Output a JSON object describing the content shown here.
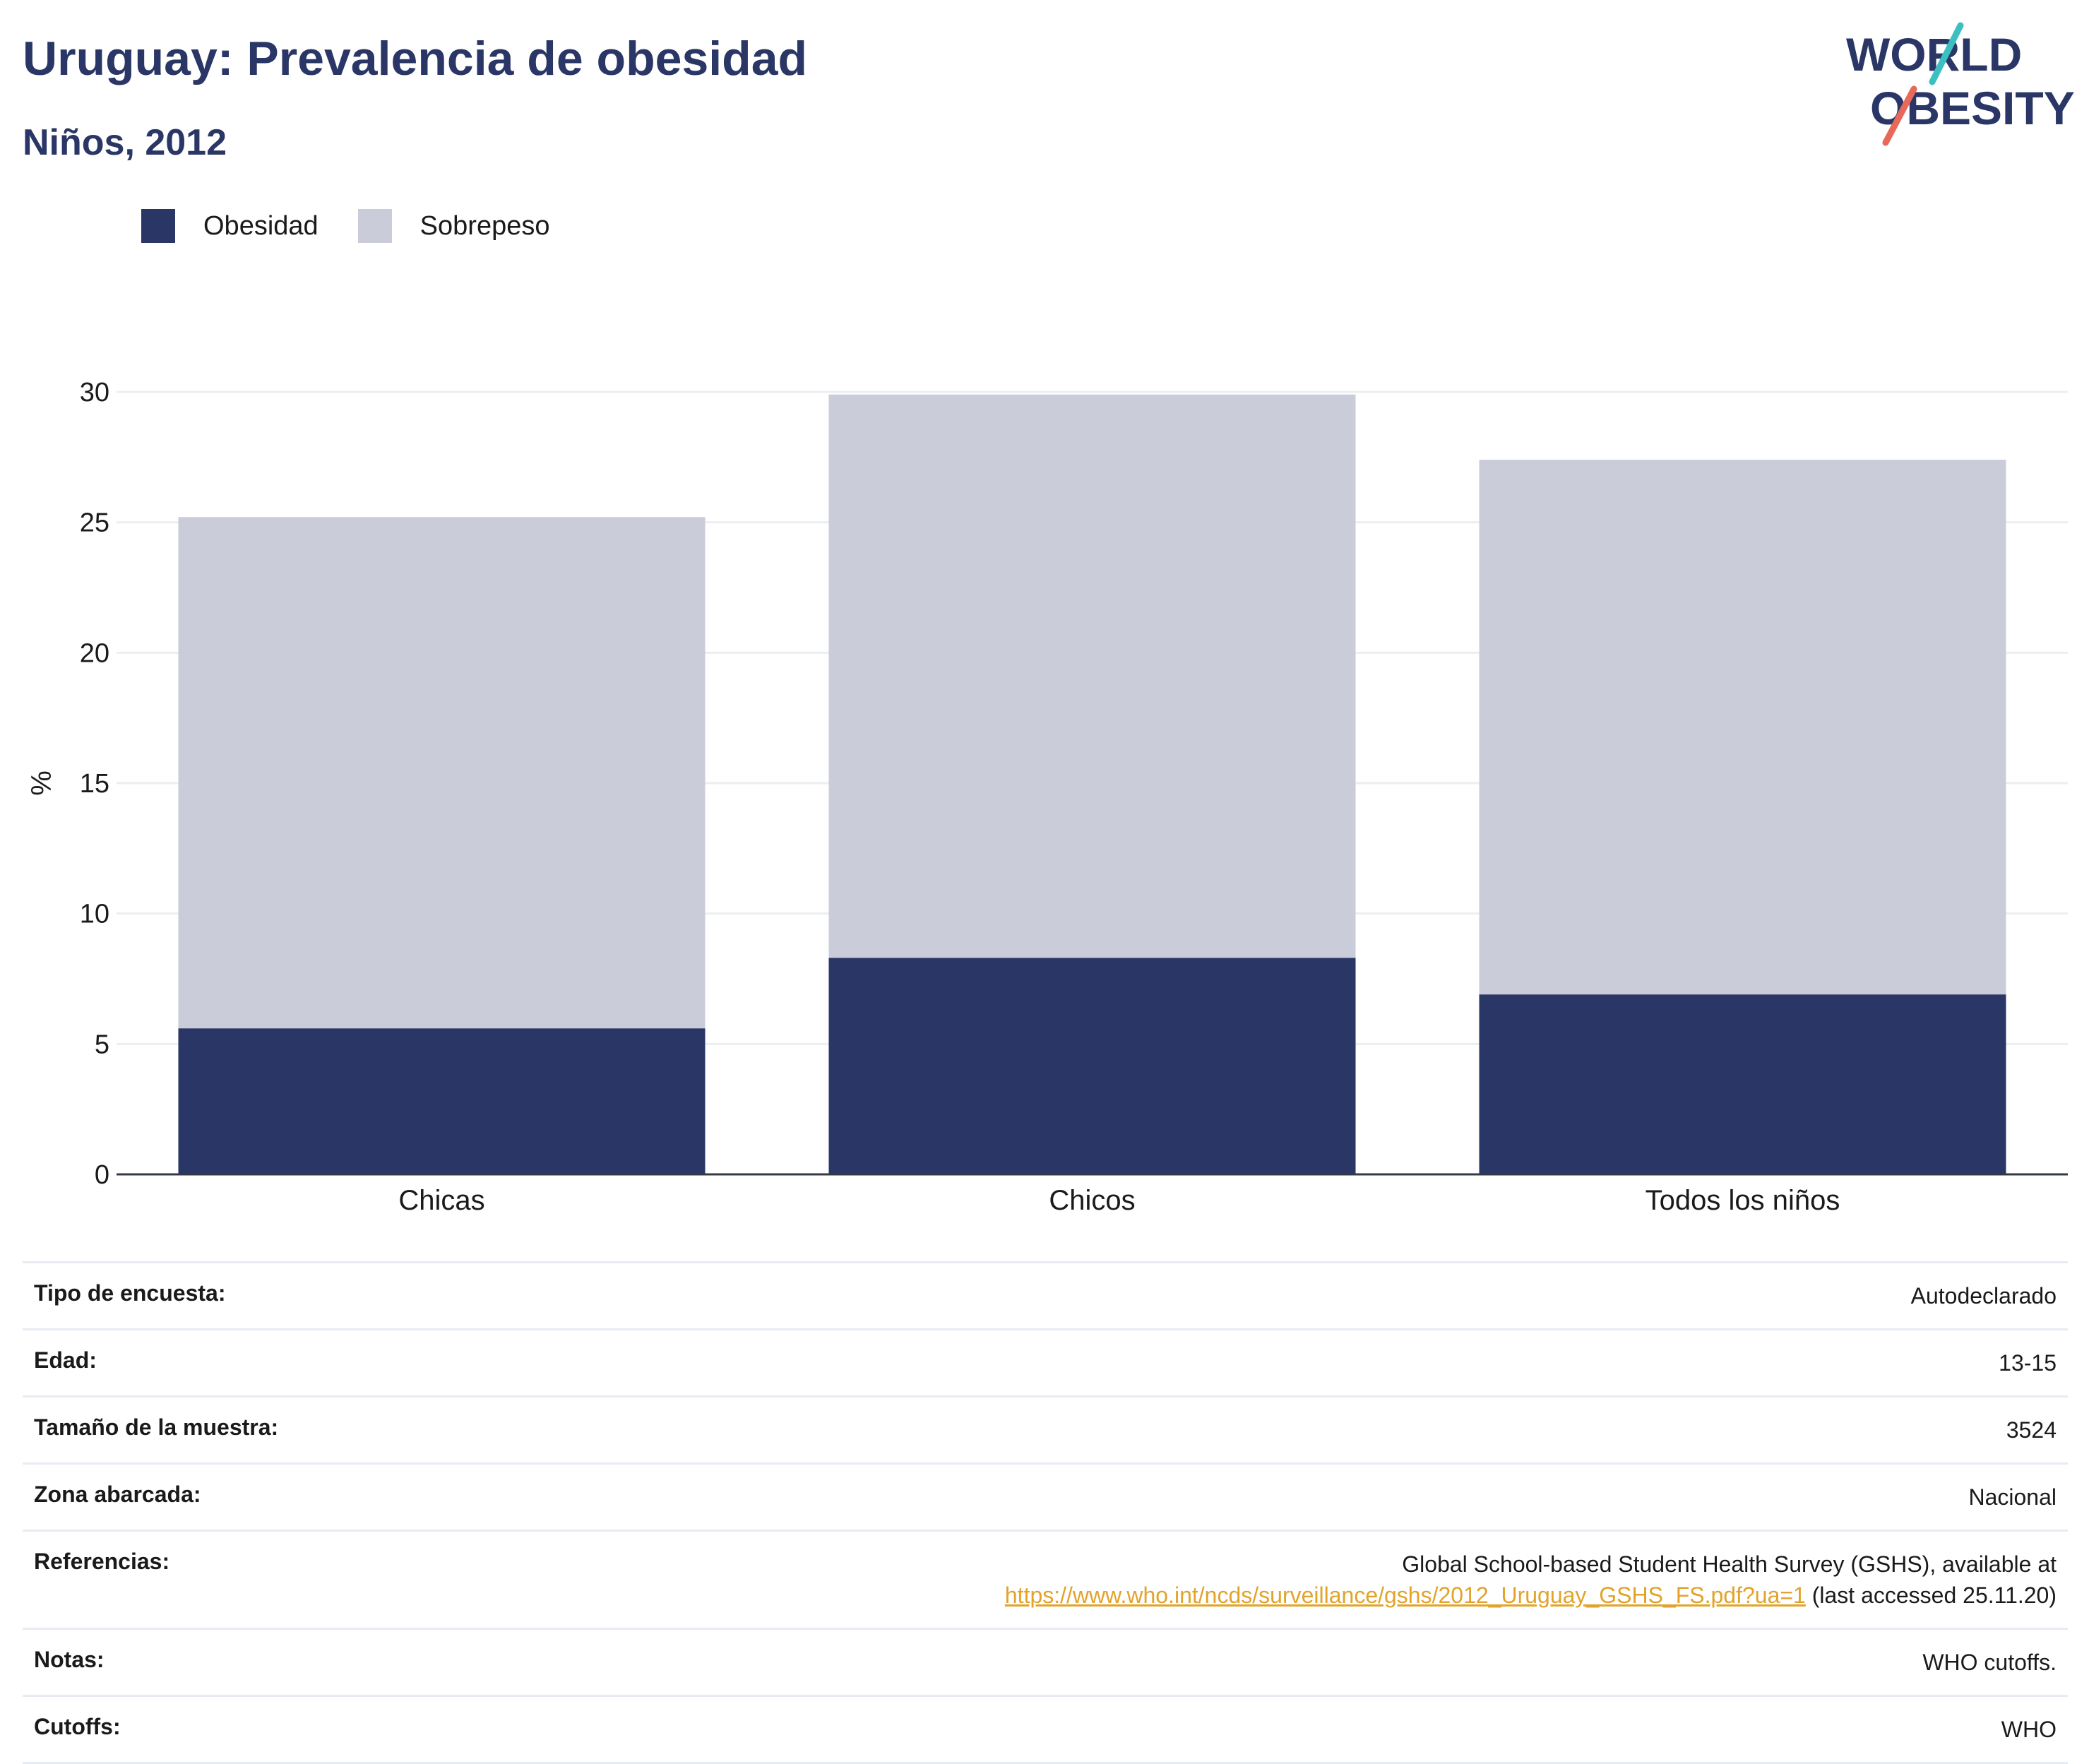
{
  "header": {
    "title": "Uruguay: Prevalencia de obesidad",
    "subtitle": "Niños, 2012"
  },
  "logo": {
    "line1": "WORLD",
    "line2": "OBESITY",
    "colors": {
      "text": "#2a3766",
      "slash_top": "#3bbfc1",
      "slash_bottom": "#e8685a"
    }
  },
  "legend": [
    {
      "label": "Obesidad",
      "color": "#2a3766"
    },
    {
      "label": "Sobrepeso",
      "color": "#cacdd9"
    }
  ],
  "chart_data": {
    "type": "bar",
    "stacked": true,
    "categories": [
      "Chicas",
      "Chicos",
      "Todos los niños"
    ],
    "series": [
      {
        "name": "Obesidad",
        "values": [
          5.6,
          8.3,
          6.9
        ],
        "color": "#2a3766"
      },
      {
        "name": "Sobrepeso",
        "values": [
          19.6,
          21.6,
          20.5
        ],
        "color": "#cacdd9"
      }
    ],
    "ylabel": "%",
    "ylim": [
      0,
      30
    ],
    "yticks": [
      0,
      5,
      10,
      15,
      20,
      25,
      30
    ],
    "grid": true,
    "legend_position": "top-left"
  },
  "info": [
    {
      "label": "Tipo de encuesta:",
      "value": "Autodeclarado"
    },
    {
      "label": "Edad:",
      "value": "13-15"
    },
    {
      "label": "Tamaño de la muestra:",
      "value": "3524"
    },
    {
      "label": "Zona abarcada:",
      "value": "Nacional"
    },
    {
      "label": "Referencias:",
      "value": "Global School-based Student Health Survey (GSHS), available at",
      "link": "https://www.who.int/ncds/surveillance/gshs/2012_Uruguay_GSHS_FS.pdf?ua=1",
      "suffix": " (last accessed 25.11.20)"
    },
    {
      "label": "Notas:",
      "value": "WHO cutoffs."
    },
    {
      "label": "Cutoffs:",
      "value": "WHO"
    }
  ]
}
